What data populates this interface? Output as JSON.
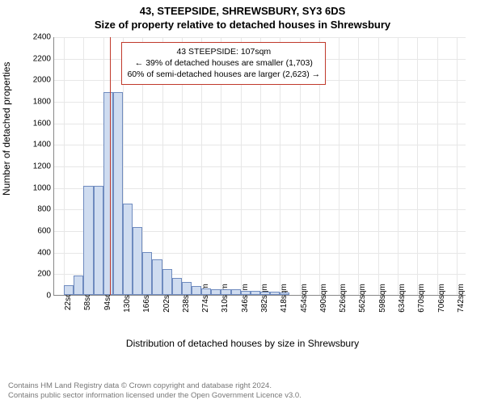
{
  "address_line": "43, STEEPSIDE, SHREWSBURY, SY3 6DS",
  "subtitle": "Size of property relative to detached houses in Shrewsbury",
  "chart": {
    "type": "histogram",
    "ylabel": "Number of detached properties",
    "xlabel": "Distribution of detached houses by size in Shrewsbury",
    "xlim": [
      4,
      760
    ],
    "ylim": [
      0,
      2400
    ],
    "ytick_step": 200,
    "xticks": [
      22,
      58,
      94,
      130,
      166,
      202,
      238,
      274,
      310,
      346,
      382,
      418,
      454,
      490,
      526,
      562,
      598,
      634,
      670,
      706,
      742
    ],
    "xtick_suffix": "sqm",
    "bin_width": 18,
    "bins": [
      {
        "x": 22,
        "count": 90
      },
      {
        "x": 40,
        "count": 180
      },
      {
        "x": 58,
        "count": 1010
      },
      {
        "x": 76,
        "count": 1010
      },
      {
        "x": 94,
        "count": 1880
      },
      {
        "x": 112,
        "count": 1880
      },
      {
        "x": 130,
        "count": 850
      },
      {
        "x": 148,
        "count": 630
      },
      {
        "x": 166,
        "count": 400
      },
      {
        "x": 184,
        "count": 330
      },
      {
        "x": 202,
        "count": 240
      },
      {
        "x": 220,
        "count": 160
      },
      {
        "x": 238,
        "count": 120
      },
      {
        "x": 256,
        "count": 80
      },
      {
        "x": 274,
        "count": 60
      },
      {
        "x": 292,
        "count": 55
      },
      {
        "x": 310,
        "count": 55
      },
      {
        "x": 328,
        "count": 50
      },
      {
        "x": 346,
        "count": 40
      },
      {
        "x": 364,
        "count": 35
      },
      {
        "x": 382,
        "count": 30
      },
      {
        "x": 400,
        "count": 30
      },
      {
        "x": 418,
        "count": 25
      }
    ],
    "bar_fill": "#cfdcf0",
    "bar_stroke": "#6f8bbf",
    "grid_color": "#e7e7e7",
    "background": "#ffffff",
    "marker": {
      "x": 107,
      "color": "#c0392b",
      "label_line1": "43 STEEPSIDE: 107sqm",
      "label_line2": "← 39% of detached houses are smaller (1,703)",
      "label_line3": "60% of semi-detached houses are larger (2,623) →"
    }
  },
  "footer_line1": "Contains HM Land Registry data © Crown copyright and database right 2024.",
  "footer_line2": "Contains public sector information licensed under the Open Government Licence v3.0."
}
